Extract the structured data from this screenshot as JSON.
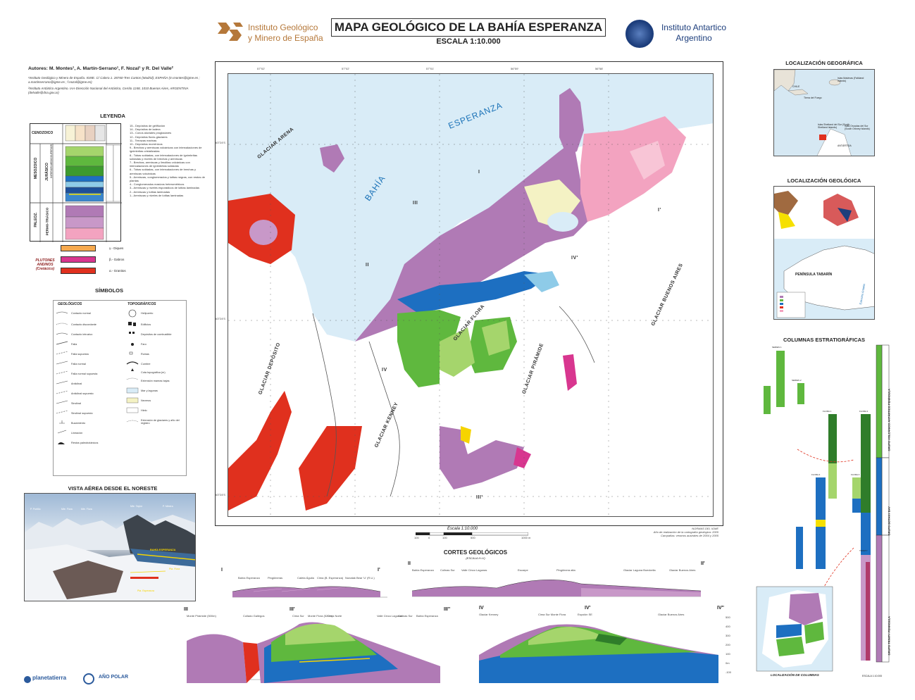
{
  "header": {
    "title": "MAPA GEOLÓGICO DE LA BAHÍA ESPERANZA",
    "scale": "ESCALA 1:10.000",
    "institute_left_line1": "Instituto Geológico",
    "institute_left_line2": "y Minero de España",
    "institute_right_line1": "Instituto Antartico",
    "institute_right_line2": "Argentino"
  },
  "authors": {
    "line": "Autores: M. Montes¹, A. Martín-Serrano¹, F. Nozal¹ y R. Del Valle²",
    "affil1": "¹Instituto Geológico y Minero de España. IGME. C/ Calera 1. 28760-Tres Cantos (Madrid), ESPAÑA (m.montes@igme.es ; a.martinserrano@igme.es ; f.nozal@igme.es)",
    "affil2": "²Instituto Antártico Argentino. IAA-Dirección Nacional del Antártico, Cerrito 1248, 1010 Buenos Aires, ARGENTINA (delvalle@dna.gov.ar)"
  },
  "legend": {
    "title": "LEYENDA",
    "eras": [
      "CENOZOICO",
      "MESOZOICO",
      "PALEOZ."
    ],
    "periods": [
      "JURÁSICO",
      "PERMO-TRIÁSICO"
    ],
    "epochs": [
      "SUPERIOR",
      "INFERIOR-MEDIO"
    ],
    "items": [
      "15.- Depósitos de gelifluxión",
      "14.- Depósitos de ladera",
      "13.- Conos aluviales proglaciares",
      "12.- Depósitos fluvio-glaciares",
      "11.- Terrazas marinas",
      "10.- Depósitos morrénicos",
      "9.- Brechas y areniscas volcánicas con intercalaciones de ignimbritas cristalizadas",
      "8.- Tobas soldadas, con intercalaciones de ignimbritas soldadas y niveles de brechas y areniscas",
      "7.- Brechas, areniscas y limolitas volcánicas con intercalaciones de ignimbritas soldadas",
      "6.- Tobas soldadas, con intercalaciones de brechas y areniscas volcánicas",
      "5.- Areniscas, conglomerados y lutitas negras, con restos de plantas",
      "4.- Conglomerados masivos heterométricos",
      "3.- Areniscas y niveles esporádicos de lutitas laminadas",
      "2.- Areniscas y lutitas laminadas",
      "1.- Areniscas y niveles de lutitas laminadas"
    ],
    "plutons_label": "PLUTONES ANDINOS (Cretácico)",
    "plutons": [
      {
        "code": "γ",
        "label": "γ.- Diques",
        "color": "#f6a94d"
      },
      {
        "code": "β",
        "label": "β.- Gabros",
        "color": "#d8368f"
      },
      {
        "code": "α",
        "label": "α.- Granitos",
        "color": "#e0301e"
      }
    ]
  },
  "symbols": {
    "title": "SÍMBOLOS",
    "geologicos_title": "GEOLÓGICOS",
    "topograficos_title": "TOPOGRÁFICOS",
    "geologicos": [
      "Contacto normal",
      "Contacto discordante",
      "Contacto intrusivo",
      "Falla",
      "Falla supuesta",
      "Falla normal",
      "Falla normal supuesta",
      "Anticlinal",
      "Anticlinal supuesto",
      "Sinclinal",
      "Sinclinal supuesto",
      "Buzamiento",
      "Lineación",
      "Restos paleobotánicos"
    ],
    "topograficos": [
      "Helipuerto",
      "Edificios",
      "Depósitos de combustible",
      "Faro",
      "Ruinas",
      "Cumbre",
      "Cota topográfica (m)",
      "Extensión mareas bajas",
      "Mar y lagunas",
      "Neveros",
      "Hielo",
      "Extensión de glaciares y año del registro"
    ]
  },
  "aerial": {
    "title": "VISTA AÉREA DESDE EL NORESTE",
    "labels": [
      "P. Portillo",
      "Mte. Flora",
      "Mte. Flora",
      "Pta. Flora",
      "Mte. Taylor",
      "P. Minera",
      "BAHÍA ESPERANZA",
      "Pta. Flora",
      "Pta. Esperanza"
    ]
  },
  "map": {
    "bay_name_1": "ESPERANZA",
    "bay_name_2": "BAHÍA",
    "labels": [
      "GLACIAR ARENA",
      "GLACIAR DEPÓSITO",
      "GLACIAR FLORA",
      "GLACIAR PIRÁMIDE",
      "GLACIAR KENNEY",
      "GLACIAR BUENOS AIRES"
    ],
    "sections": [
      "I",
      "I'",
      "II",
      "II'",
      "III",
      "III'",
      "III''",
      "IV",
      "IV'",
      "IV''"
    ],
    "grid_top": [
      "57°02'",
      "57°02'",
      "57°01'",
      "56°59'",
      "56°58'"
    ],
    "grid_left": [
      "63°24'S",
      "63°24'S",
      "63°24'S"
    ],
    "scale_label": "Escala 1:10.000",
    "scale_ticks": [
      "100",
      "0",
      "100",
      "500",
      "1000 m"
    ],
    "normas": "NORMAS DEL IGME",
    "anio": "Año de realización de la cartografía geológica: 2005",
    "campanas": "Campañas: veranos australes de 2004 y 2005"
  },
  "loc_geografica": {
    "title": "LOCALIZACIÓN GEOGRÁFICA",
    "places": [
      "CHILE",
      "Tierra del Fuego",
      "Islas Malvinas (Falkland Islands)",
      "Islas Shetland del Sur (South Shetland Islands)",
      "Islas Orcadas del Sur (South Orkney Islands)",
      "ANTÁRTIDA"
    ]
  },
  "loc_geologica": {
    "title": "LOCALIZACIÓN GEOLÓGICA",
    "place": "PENÍNSULA TABARÍN",
    "strait": "Estrecho Antartic"
  },
  "columnas": {
    "title": "COLUMNAS ESTRATIGRÁFICAS",
    "names": [
      "SERIES 1",
      "SERIES 2",
      "FLORA 1",
      "FLORA 2",
      "FLORA 3",
      "FLORA 4",
      "TRINITY"
    ],
    "groups": [
      "GRUPO VOLCÁNICO ANTÁRTICO PENÍNSULA",
      "GRUPO BOTANY BAY",
      "GRUPO TRINITY PENINSULA"
    ],
    "loc_title": "LOCALIZACIÓN DE COLUMNAS",
    "escala": "ESCALA 1:10.000"
  },
  "cortes": {
    "title": "CORTES GEOLÓGICOS",
    "sub": "(ESCALA H=V)",
    "sections": [
      {
        "start": "I",
        "end": "I'",
        "labels": [
          "Bahía Esperanza",
          "Pingüineras",
          "Caleta Águila",
          "Cima (B. Esperanza)",
          "Nunatak Bear 'U' (R.U.)"
        ]
      },
      {
        "start": "II",
        "end": "II'",
        "labels": [
          "Bahía Esperanza",
          "Colinas Sur",
          "Valle Cinco Lagunas",
          "Escarpe",
          "Pingüinera alta",
          "Glaciar Laguna Boeckella",
          "Glaciar Buenos Aires"
        ]
      },
      {
        "start": "III",
        "end": "III'",
        "labels": [
          "Monte Pirámide (500m)",
          "Collado Gallegos",
          "Cima Sur",
          "Monte Flora (520m)",
          "Cima Norte"
        ]
      },
      {
        "start": "III'",
        "end": "III''",
        "labels": [
          "Valle Cinco Lagunas",
          "Colinas Sur",
          "Bahía Esperanza"
        ]
      },
      {
        "start": "IV",
        "end": "IV'",
        "labels": [
          "Glaciar Kenney",
          "Cima Sur Monte Flora",
          "Espolón SE"
        ]
      },
      {
        "start": "IV'",
        "end": "IV''",
        "labels": [
          "Glaciar Buenos Aires"
        ]
      }
    ],
    "yticks": [
      "500",
      "400",
      "300",
      "200",
      "100",
      "0m",
      "-100"
    ]
  },
  "footer": {
    "logo1": "planetatierra",
    "logo2": "AÑO POLAR"
  },
  "colors": {
    "pink": "#f3a3c0",
    "purple": "#b07ab5",
    "magenta_dark": "#8c4a8f",
    "green": "#5fb83e",
    "light_green": "#a5d56c",
    "blue": "#1d6fc1",
    "light_blue": "#8ecbe8",
    "red": "#e0301e",
    "sea": "#d9ecf7",
    "beige": "#f0e0b0",
    "gray": "#a0a0a0"
  }
}
